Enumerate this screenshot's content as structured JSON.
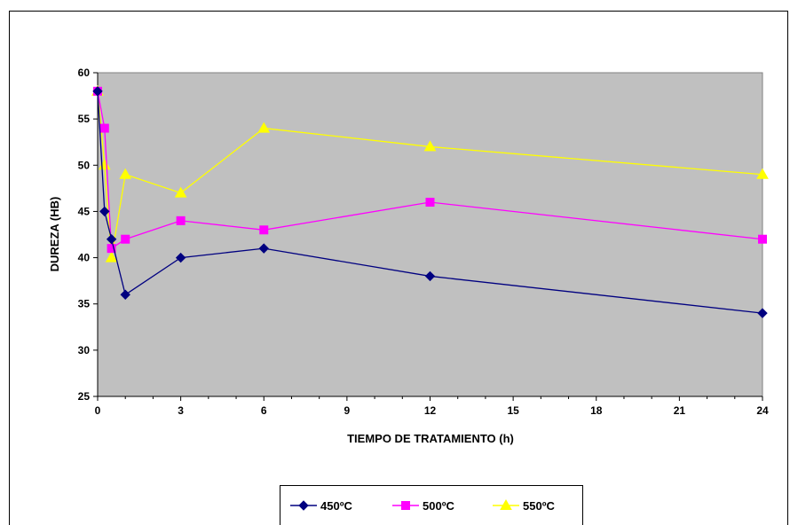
{
  "chart_data": {
    "type": "line",
    "title": "",
    "xlabel": "TIEMPO DE TRATAMIENTO (h)",
    "ylabel": "DUREZA (HB)",
    "xlim": [
      0,
      24
    ],
    "ylim": [
      25,
      60
    ],
    "x_ticks": [
      0,
      3,
      6,
      9,
      12,
      15,
      18,
      21,
      24
    ],
    "y_ticks": [
      25,
      30,
      35,
      40,
      45,
      50,
      55,
      60
    ],
    "grid": false,
    "plot_background": "#c0c0c0",
    "legend_position": "bottom",
    "series": [
      {
        "name": "450ºC",
        "color": "#000080",
        "marker": "diamond",
        "x": [
          0,
          0.25,
          0.5,
          1,
          3,
          6,
          12,
          24
        ],
        "y": [
          58,
          45,
          42,
          36,
          40,
          41,
          38,
          34
        ]
      },
      {
        "name": "500ºC",
        "color": "#ff00ff",
        "marker": "square",
        "x": [
          0,
          0.25,
          0.5,
          1,
          3,
          6,
          12,
          24
        ],
        "y": [
          58,
          54,
          41,
          42,
          44,
          43,
          46,
          42
        ]
      },
      {
        "name": "550ºC",
        "color": "#ffff00",
        "marker": "triangle",
        "x": [
          0,
          0.25,
          0.5,
          1,
          3,
          6,
          12,
          24
        ],
        "y": [
          58,
          50,
          40,
          49,
          47,
          54,
          52,
          49
        ]
      }
    ]
  }
}
